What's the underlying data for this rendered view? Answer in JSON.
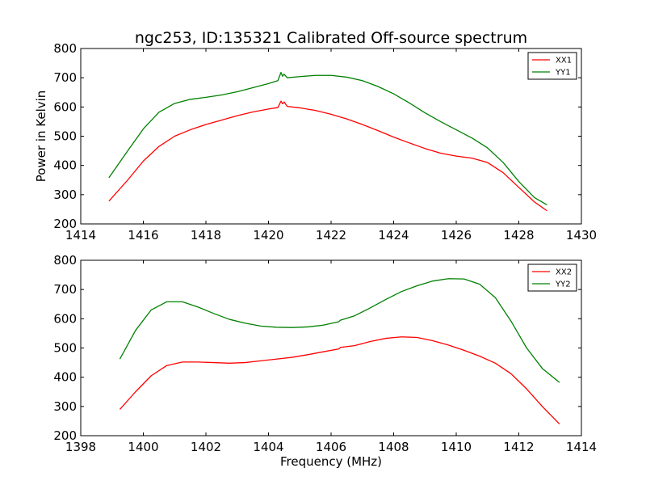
{
  "figure": {
    "title": "ngc253, ID:135321 Calibrated Off-source spectrum",
    "xlabel": "Frequency (MHz)"
  },
  "chart_data": [
    {
      "type": "line",
      "xlim": [
        1414,
        1430
      ],
      "ylim": [
        200,
        800
      ],
      "xticks": [
        1414,
        1416,
        1418,
        1420,
        1422,
        1424,
        1426,
        1428,
        1430
      ],
      "yticks": [
        200,
        300,
        400,
        500,
        600,
        700,
        800
      ],
      "ylabel": "Power in Kelvin",
      "legend_position": "top-right",
      "series": [
        {
          "name": "XX1",
          "color": "#ff0000",
          "x": [
            1414.9,
            1415.5,
            1416.0,
            1416.5,
            1417.0,
            1417.5,
            1418.0,
            1418.5,
            1419.0,
            1419.5,
            1420.0,
            1420.3,
            1420.4,
            1420.45,
            1420.5,
            1420.6,
            1421.0,
            1421.5,
            1422.0,
            1422.5,
            1423.0,
            1423.5,
            1424.0,
            1424.5,
            1425.0,
            1425.5,
            1426.0,
            1426.5,
            1427.0,
            1427.5,
            1428.0,
            1428.5,
            1428.9
          ],
          "y": [
            278,
            350,
            415,
            465,
            500,
            522,
            540,
            555,
            570,
            583,
            593,
            598,
            620,
            611,
            617,
            602,
            597,
            588,
            575,
            559,
            540,
            519,
            497,
            477,
            458,
            442,
            432,
            425,
            410,
            375,
            325,
            275,
            245
          ]
        },
        {
          "name": "YY1",
          "color": "#008000",
          "x": [
            1414.9,
            1415.5,
            1416.0,
            1416.5,
            1417.0,
            1417.5,
            1418.0,
            1418.5,
            1419.0,
            1419.5,
            1420.0,
            1420.3,
            1420.4,
            1420.45,
            1420.5,
            1420.6,
            1421.0,
            1421.5,
            1422.0,
            1422.5,
            1423.0,
            1423.5,
            1424.0,
            1424.5,
            1425.0,
            1425.5,
            1426.0,
            1426.5,
            1427.0,
            1427.5,
            1428.0,
            1428.5,
            1428.9
          ],
          "y": [
            358,
            450,
            525,
            582,
            612,
            626,
            633,
            641,
            652,
            666,
            680,
            690,
            718,
            705,
            712,
            700,
            704,
            708,
            708,
            702,
            690,
            670,
            645,
            614,
            580,
            550,
            522,
            494,
            460,
            410,
            345,
            290,
            265
          ]
        }
      ]
    },
    {
      "type": "line",
      "xlim": [
        1398,
        1414
      ],
      "ylim": [
        200,
        800
      ],
      "xticks": [
        1398,
        1400,
        1402,
        1404,
        1406,
        1408,
        1410,
        1412,
        1414
      ],
      "yticks": [
        200,
        300,
        400,
        500,
        600,
        700,
        800
      ],
      "legend_position": "top-right",
      "series": [
        {
          "name": "XX2",
          "color": "#ff0000",
          "x": [
            1399.25,
            1399.75,
            1400.25,
            1400.75,
            1401.25,
            1401.75,
            1402.25,
            1402.75,
            1403.25,
            1403.75,
            1404.25,
            1404.75,
            1405.25,
            1405.75,
            1406.25,
            1406.3,
            1406.75,
            1407.25,
            1407.75,
            1408.25,
            1408.75,
            1409.25,
            1409.75,
            1410.25,
            1410.75,
            1411.25,
            1411.75,
            1412.25,
            1412.75,
            1413.3
          ],
          "y": [
            290,
            350,
            405,
            440,
            452,
            452,
            450,
            448,
            450,
            456,
            462,
            468,
            477,
            487,
            497,
            502,
            508,
            522,
            533,
            538,
            536,
            525,
            510,
            492,
            472,
            448,
            412,
            360,
            300,
            240
          ]
        },
        {
          "name": "YY2",
          "color": "#008000",
          "x": [
            1399.25,
            1399.75,
            1400.25,
            1400.75,
            1401.25,
            1401.75,
            1402.25,
            1402.75,
            1403.25,
            1403.75,
            1404.25,
            1404.75,
            1405.25,
            1405.75,
            1406.25,
            1406.3,
            1406.75,
            1407.25,
            1407.75,
            1408.25,
            1408.75,
            1409.25,
            1409.75,
            1410.25,
            1410.75,
            1411.25,
            1411.75,
            1412.25,
            1412.75,
            1413.3
          ],
          "y": [
            462,
            560,
            630,
            658,
            658,
            640,
            618,
            598,
            585,
            575,
            571,
            570,
            572,
            578,
            590,
            595,
            610,
            637,
            666,
            693,
            713,
            729,
            737,
            736,
            718,
            672,
            592,
            500,
            430,
            382
          ]
        }
      ]
    }
  ]
}
